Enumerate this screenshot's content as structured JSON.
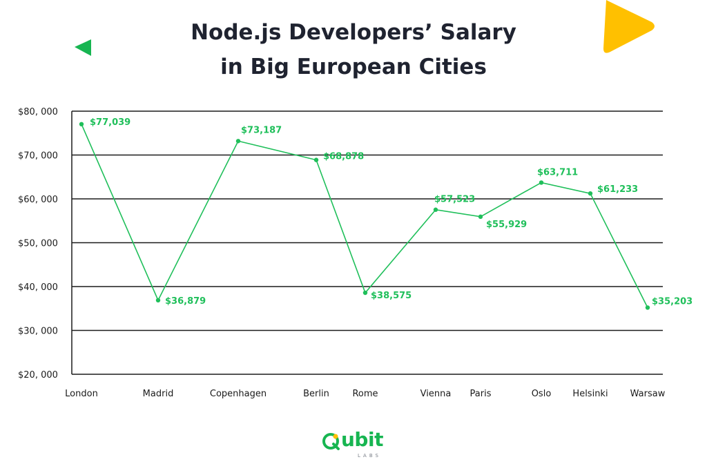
{
  "title": {
    "line1": "Node.js Developers’ Salary",
    "line2": "in Big European Cities"
  },
  "colors": {
    "series": "#1fbf5a",
    "grid": "#1a1a1a",
    "accent_yellow": "#ffc000",
    "accent_green": "#17b551",
    "title": "#1f2330"
  },
  "chart_data": {
    "type": "line",
    "categories": [
      "London",
      "Madrid",
      "Copenhagen",
      "Berlin",
      "Rome",
      "Vienna",
      "Paris",
      "Oslo",
      "Helsinki",
      "Warsaw"
    ],
    "series": [
      {
        "values": [
          77039,
          36879,
          73187,
          68878,
          38575,
          57523,
          55929,
          63711,
          61233,
          35203
        ],
        "labels": [
          "$77,039",
          "$36,879",
          "$73,187",
          "$68,878",
          "$38,575",
          "$57,523",
          "$55,929",
          "$63,711",
          "$61,233",
          "$35,203"
        ]
      }
    ],
    "y_ticks": [
      {
        "value": 20000,
        "label": "$20, 000"
      },
      {
        "value": 30000,
        "label": "$30, 000"
      },
      {
        "value": 40000,
        "label": "$40, 000"
      },
      {
        "value": 50000,
        "label": "$50, 000"
      },
      {
        "value": 60000,
        "label": "$60, 000"
      },
      {
        "value": 70000,
        "label": "$70, 000"
      },
      {
        "value": 80000,
        "label": "$80, 000"
      }
    ],
    "ylim": [
      20000,
      80000
    ],
    "grid": true,
    "xlabel": "",
    "ylabel": ""
  },
  "logo": {
    "word": "ubit",
    "sub": "LABS"
  }
}
